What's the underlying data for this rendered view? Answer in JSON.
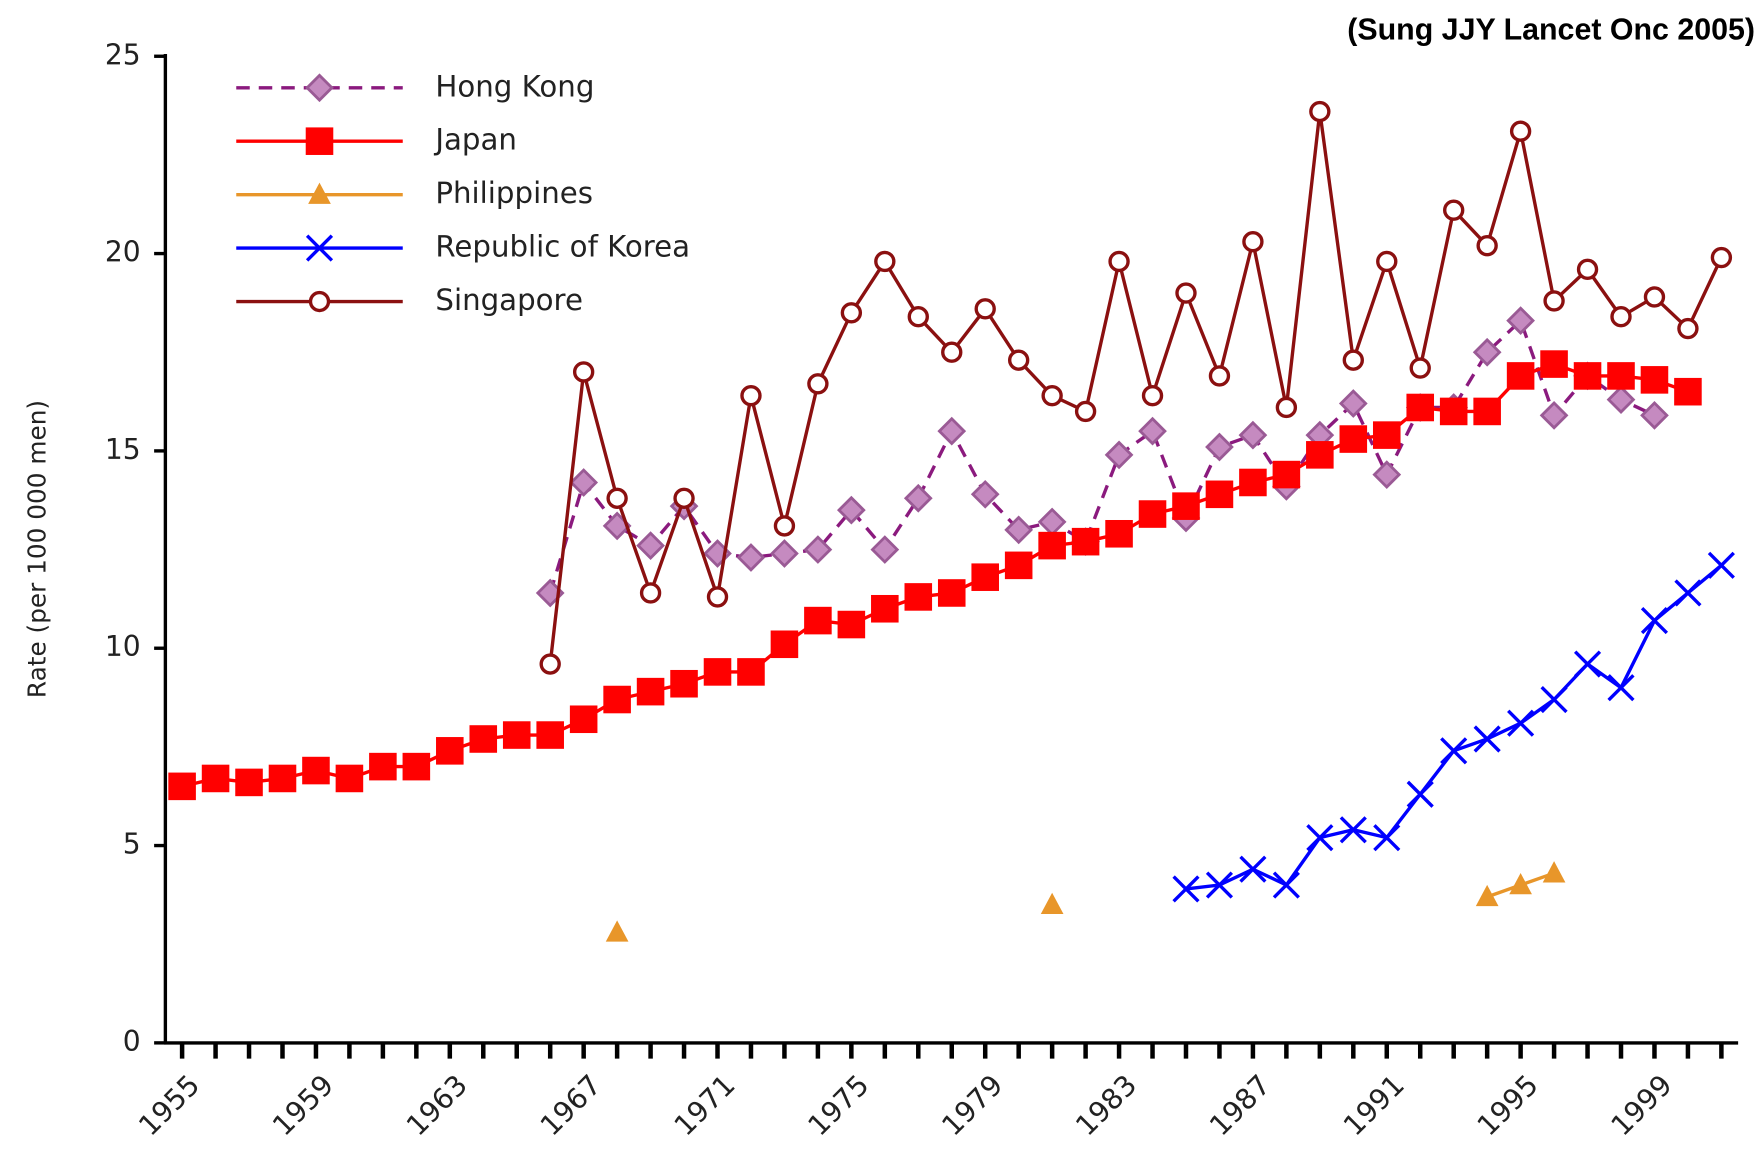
{
  "chart_data": {
    "type": "line",
    "source": "(Sung JJY Lancet Onc 2005)",
    "y_label": "Rate (per 100 000 men)",
    "x": [
      1955,
      1956,
      1957,
      1958,
      1959,
      1960,
      1961,
      1962,
      1963,
      1964,
      1965,
      1966,
      1967,
      1968,
      1969,
      1970,
      1971,
      1972,
      1973,
      1974,
      1975,
      1976,
      1977,
      1978,
      1979,
      1980,
      1981,
      1982,
      1983,
      1984,
      1985,
      1986,
      1987,
      1988,
      1989,
      1990,
      1991,
      1992,
      1993,
      1994,
      1995,
      1996,
      1997,
      1998,
      1999,
      2000,
      2001
    ],
    "xlim": [
      1954.5,
      2001.5
    ],
    "xticks": [
      1955,
      1959,
      1963,
      1967,
      1971,
      1975,
      1979,
      1983,
      1987,
      1991,
      1995,
      1999
    ],
    "ylim": [
      0,
      25
    ],
    "yticks": [
      0,
      5,
      10,
      15,
      20,
      25
    ],
    "legend": "upper left",
    "series": [
      {
        "name": "Hong Kong",
        "color": "#8b1a7e",
        "marker_fill": "#c58ac0",
        "marker": "diamond",
        "dash": true,
        "values": [
          null,
          null,
          null,
          null,
          null,
          null,
          null,
          null,
          null,
          null,
          null,
          11.4,
          14.2,
          13.1,
          12.6,
          13.6,
          12.4,
          12.3,
          12.4,
          12.5,
          13.5,
          12.5,
          13.8,
          15.5,
          13.9,
          13.0,
          13.2,
          12.7,
          14.9,
          15.5,
          13.3,
          15.1,
          15.4,
          14.1,
          15.4,
          16.2,
          14.4,
          16.1,
          16.1,
          17.5,
          18.3,
          15.9,
          16.9,
          16.3,
          15.9,
          null,
          null
        ]
      },
      {
        "name": "Japan",
        "color": "#ff0000",
        "marker_fill": "#ff0000",
        "marker": "square",
        "dash": false,
        "values": [
          6.5,
          6.7,
          6.6,
          6.7,
          6.9,
          6.7,
          7.0,
          7.0,
          7.4,
          7.7,
          7.8,
          7.8,
          8.2,
          8.7,
          8.9,
          9.1,
          9.4,
          9.4,
          10.1,
          10.7,
          10.6,
          11.0,
          11.3,
          11.4,
          11.8,
          12.1,
          12.6,
          12.7,
          12.9,
          13.4,
          13.6,
          13.9,
          14.2,
          14.4,
          14.9,
          15.3,
          15.4,
          16.1,
          16.0,
          16.0,
          16.9,
          17.2,
          16.9,
          16.9,
          16.8,
          16.5,
          null
        ]
      },
      {
        "name": "Philippines",
        "color": "#e8962a",
        "marker_fill": "#e8962a",
        "marker": "triangle",
        "dash": false,
        "values": [
          null,
          null,
          null,
          null,
          null,
          null,
          null,
          null,
          null,
          null,
          null,
          null,
          null,
          2.8,
          null,
          null,
          null,
          null,
          null,
          null,
          null,
          null,
          null,
          null,
          null,
          null,
          3.5,
          null,
          null,
          null,
          null,
          null,
          null,
          null,
          null,
          null,
          null,
          null,
          null,
          3.7,
          4.0,
          4.3,
          null,
          null,
          null,
          null,
          null
        ]
      },
      {
        "name": "Republic of Korea",
        "color": "#0000ff",
        "marker_fill": "none",
        "marker": "x",
        "dash": false,
        "values": [
          null,
          null,
          null,
          null,
          null,
          null,
          null,
          null,
          null,
          null,
          null,
          null,
          null,
          null,
          null,
          null,
          null,
          null,
          null,
          null,
          null,
          null,
          null,
          null,
          null,
          null,
          null,
          null,
          null,
          null,
          3.9,
          4.0,
          4.4,
          4.0,
          5.2,
          5.4,
          5.2,
          6.3,
          7.4,
          7.7,
          8.1,
          8.7,
          9.6,
          9.0,
          10.7,
          11.4,
          12.1
        ]
      },
      {
        "name": "Singapore",
        "color": "#8b1010",
        "marker_fill": "#ffffff",
        "marker": "circle",
        "dash": false,
        "values": [
          null,
          null,
          null,
          null,
          null,
          null,
          null,
          null,
          null,
          null,
          null,
          9.6,
          17.0,
          13.8,
          11.4,
          13.8,
          11.3,
          16.4,
          13.1,
          16.7,
          18.5,
          19.8,
          18.4,
          17.5,
          18.6,
          17.3,
          16.4,
          16.0,
          19.8,
          16.4,
          19.0,
          16.9,
          20.3,
          16.1,
          23.6,
          17.3,
          19.8,
          17.1,
          21.1,
          20.2,
          23.1,
          18.8,
          19.6,
          18.4,
          18.9,
          18.1,
          19.9
        ]
      }
    ]
  }
}
